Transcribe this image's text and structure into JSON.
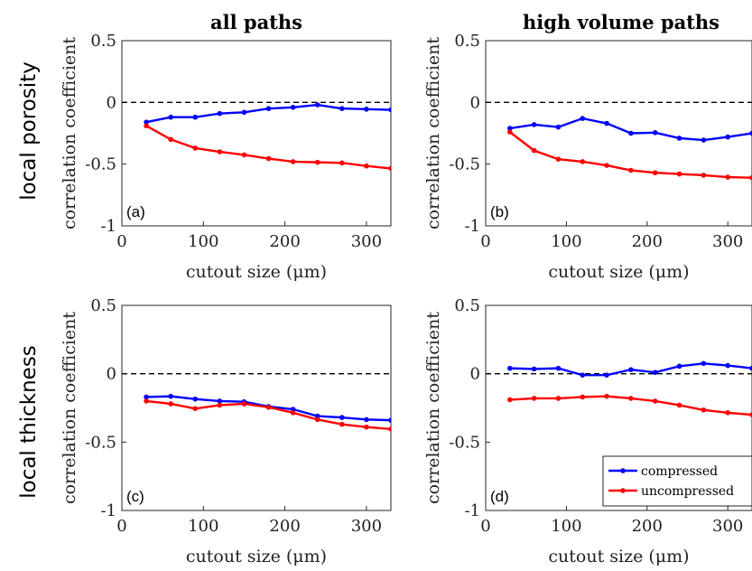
{
  "figure": {
    "column_titles": [
      "all paths",
      "high volume paths"
    ],
    "row_labels": [
      "local porosity",
      "local thickness"
    ]
  },
  "chart_data": [
    {
      "type": "line",
      "panel": "(a)",
      "column_title": "all paths",
      "row_label": "local porosity",
      "xlabel": "cutout size (μm)",
      "ylabel": "correlation coefficient",
      "xlim": [
        0,
        330
      ],
      "ylim": [
        -1,
        0.5
      ],
      "xticks": [
        "0",
        "100",
        "200",
        "300"
      ],
      "yticks": [
        "0.5",
        "0",
        "-0.5",
        "-1"
      ],
      "reference_line": 0,
      "x": [
        30,
        60,
        90,
        120,
        150,
        180,
        210,
        240,
        270,
        300,
        330
      ],
      "series": [
        {
          "name": "compressed",
          "color": "#0000ff",
          "values": [
            -0.16,
            -0.12,
            -0.12,
            -0.09,
            -0.08,
            -0.05,
            -0.04,
            -0.02,
            -0.05,
            -0.055,
            -0.06
          ]
        },
        {
          "name": "uncompressed",
          "color": "#ff0000",
          "values": [
            -0.19,
            -0.3,
            -0.37,
            -0.4,
            -0.425,
            -0.455,
            -0.48,
            -0.485,
            -0.49,
            -0.515,
            -0.535
          ]
        }
      ]
    },
    {
      "type": "line",
      "panel": "(b)",
      "column_title": "high volume paths",
      "row_label": "local porosity",
      "xlabel": "cutout size (μm)",
      "ylabel": "correlation coefficient",
      "xlim": [
        0,
        330
      ],
      "ylim": [
        -1,
        0.5
      ],
      "xticks": [
        "0",
        "100",
        "200",
        "300"
      ],
      "yticks": [
        "0.5",
        "0",
        "-0.5",
        "-1"
      ],
      "reference_line": 0,
      "x": [
        30,
        60,
        90,
        120,
        150,
        180,
        210,
        240,
        270,
        300,
        330
      ],
      "series": [
        {
          "name": "compressed",
          "color": "#0000ff",
          "values": [
            -0.21,
            -0.18,
            -0.2,
            -0.13,
            -0.17,
            -0.25,
            -0.245,
            -0.29,
            -0.305,
            -0.28,
            -0.25
          ]
        },
        {
          "name": "uncompressed",
          "color": "#ff0000",
          "values": [
            -0.24,
            -0.39,
            -0.46,
            -0.48,
            -0.51,
            -0.55,
            -0.57,
            -0.58,
            -0.59,
            -0.605,
            -0.61
          ]
        }
      ]
    },
    {
      "type": "line",
      "panel": "(c)",
      "column_title": "all paths",
      "row_label": "local thickness",
      "xlabel": "cutout size (μm)",
      "ylabel": "correlation coefficient",
      "xlim": [
        0,
        330
      ],
      "ylim": [
        -1,
        0.5
      ],
      "xticks": [
        "0",
        "100",
        "200",
        "300"
      ],
      "yticks": [
        "0.5",
        "0",
        "-0.5",
        "-1"
      ],
      "reference_line": 0,
      "x": [
        30,
        60,
        90,
        120,
        150,
        180,
        210,
        240,
        270,
        300,
        330
      ],
      "series": [
        {
          "name": "compressed",
          "color": "#0000ff",
          "values": [
            -0.17,
            -0.165,
            -0.185,
            -0.2,
            -0.205,
            -0.24,
            -0.26,
            -0.31,
            -0.32,
            -0.335,
            -0.34
          ]
        },
        {
          "name": "uncompressed",
          "color": "#ff0000",
          "values": [
            -0.2,
            -0.22,
            -0.255,
            -0.23,
            -0.22,
            -0.245,
            -0.285,
            -0.335,
            -0.37,
            -0.39,
            -0.405
          ]
        }
      ]
    },
    {
      "type": "line",
      "panel": "(d)",
      "column_title": "high volume paths",
      "row_label": "local thickness",
      "xlabel": "cutout size (μm)",
      "ylabel": "correlation coefficient",
      "xlim": [
        0,
        330
      ],
      "ylim": [
        -1,
        0.5
      ],
      "xticks": [
        "0",
        "100",
        "200",
        "300"
      ],
      "yticks": [
        "0.5",
        "0",
        "-0.5",
        "-1"
      ],
      "reference_line": 0,
      "legend": {
        "placement": "bottom-right",
        "entries": [
          "compressed",
          "uncompressed"
        ]
      },
      "x": [
        30,
        60,
        90,
        120,
        150,
        180,
        210,
        240,
        270,
        300,
        330
      ],
      "series": [
        {
          "name": "compressed",
          "color": "#0000ff",
          "values": [
            0.04,
            0.035,
            0.04,
            -0.01,
            -0.01,
            0.03,
            0.01,
            0.055,
            0.075,
            0.06,
            0.04
          ]
        },
        {
          "name": "uncompressed",
          "color": "#ff0000",
          "values": [
            -0.19,
            -0.18,
            -0.18,
            -0.17,
            -0.165,
            -0.18,
            -0.2,
            -0.23,
            -0.265,
            -0.285,
            -0.3
          ]
        }
      ]
    }
  ]
}
